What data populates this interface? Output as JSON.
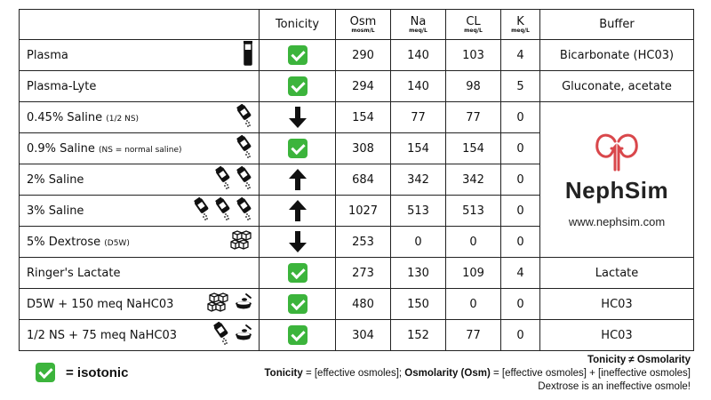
{
  "headers": {
    "tonicity": "Tonicity",
    "osm": "Osm",
    "osm_unit": "mosm/L",
    "na": "Na",
    "na_unit": "meq/L",
    "cl": "CL",
    "cl_unit": "meq/L",
    "k": "K",
    "k_unit": "meq/L",
    "buffer": "Buffer"
  },
  "rows": [
    {
      "name": "Plasma",
      "sub": "",
      "tonicity": "isotonic",
      "osm": "290",
      "na": "140",
      "cl": "103",
      "k": "4",
      "buffer": "Bicarbonate (HC03)",
      "icons": [
        "test-tube-icon"
      ]
    },
    {
      "name": "Plasma-Lyte",
      "sub": "",
      "tonicity": "isotonic",
      "osm": "294",
      "na": "140",
      "cl": "98",
      "k": "5",
      "buffer": "Gluconate, acetate",
      "icons": []
    },
    {
      "name": "0.45% Saline ",
      "sub": "(1/2 NS)",
      "tonicity": "hypotonic",
      "osm": "154",
      "na": "77",
      "cl": "77",
      "k": "0",
      "icons": [
        "salt-shaker-icon"
      ]
    },
    {
      "name": "0.9% Saline ",
      "sub": "(NS = normal saline)",
      "tonicity": "isotonic",
      "osm": "308",
      "na": "154",
      "cl": "154",
      "k": "0",
      "icons": [
        "salt-shaker-icon"
      ]
    },
    {
      "name": "2% Saline",
      "sub": "",
      "tonicity": "hypertonic",
      "osm": "684",
      "na": "342",
      "cl": "342",
      "k": "0",
      "icons": [
        "salt-shaker-icon",
        "salt-shaker-icon"
      ]
    },
    {
      "name": "3% Saline",
      "sub": "",
      "tonicity": "hypertonic",
      "osm": "1027",
      "na": "513",
      "cl": "513",
      "k": "0",
      "icons": [
        "salt-shaker-icon",
        "salt-shaker-icon",
        "salt-shaker-icon"
      ]
    },
    {
      "name": "5% Dextrose ",
      "sub": "(D5W)",
      "tonicity": "hypotonic",
      "osm": "253",
      "na": "0",
      "cl": "0",
      "k": "0",
      "icons": [
        "sugar-cubes-icon"
      ]
    },
    {
      "name": "Ringer's Lactate",
      "sub": "",
      "tonicity": "isotonic",
      "osm": "273",
      "na": "130",
      "cl": "109",
      "k": "4",
      "buffer": "Lactate",
      "icons": []
    },
    {
      "name": "D5W + 150 meq NaHC03",
      "sub": "",
      "tonicity": "isotonic",
      "osm": "480",
      "na": "150",
      "cl": "0",
      "k": "0",
      "buffer": "HC03",
      "icons": [
        "sugar-cubes-icon",
        "baking-soda-bowl-icon"
      ]
    },
    {
      "name": "1/2 NS + 75 meq NaHC03",
      "sub": "",
      "tonicity": "isotonic",
      "osm": "304",
      "na": "152",
      "cl": "77",
      "k": "0",
      "buffer": "HC03",
      "icons": [
        "salt-shaker-icon",
        "baking-soda-bowl-icon"
      ]
    }
  ],
  "logo": {
    "name": "NephSim",
    "url": "www.nephsim.com",
    "color": "#d9474b"
  },
  "legend": {
    "label": "= isotonic",
    "color": "#3cb43c"
  },
  "notes": {
    "line1": "Tonicity ≠ Osmolarity",
    "tonicity_term": "Tonicity",
    "tonicity_def": " = [effective osmoles]; ",
    "osm_term": "Osmolarity (Osm)",
    "osm_def": " = [effective osmoles] + [ineffective osmoles]",
    "line3": "Dextrose is an ineffective osmole!"
  }
}
